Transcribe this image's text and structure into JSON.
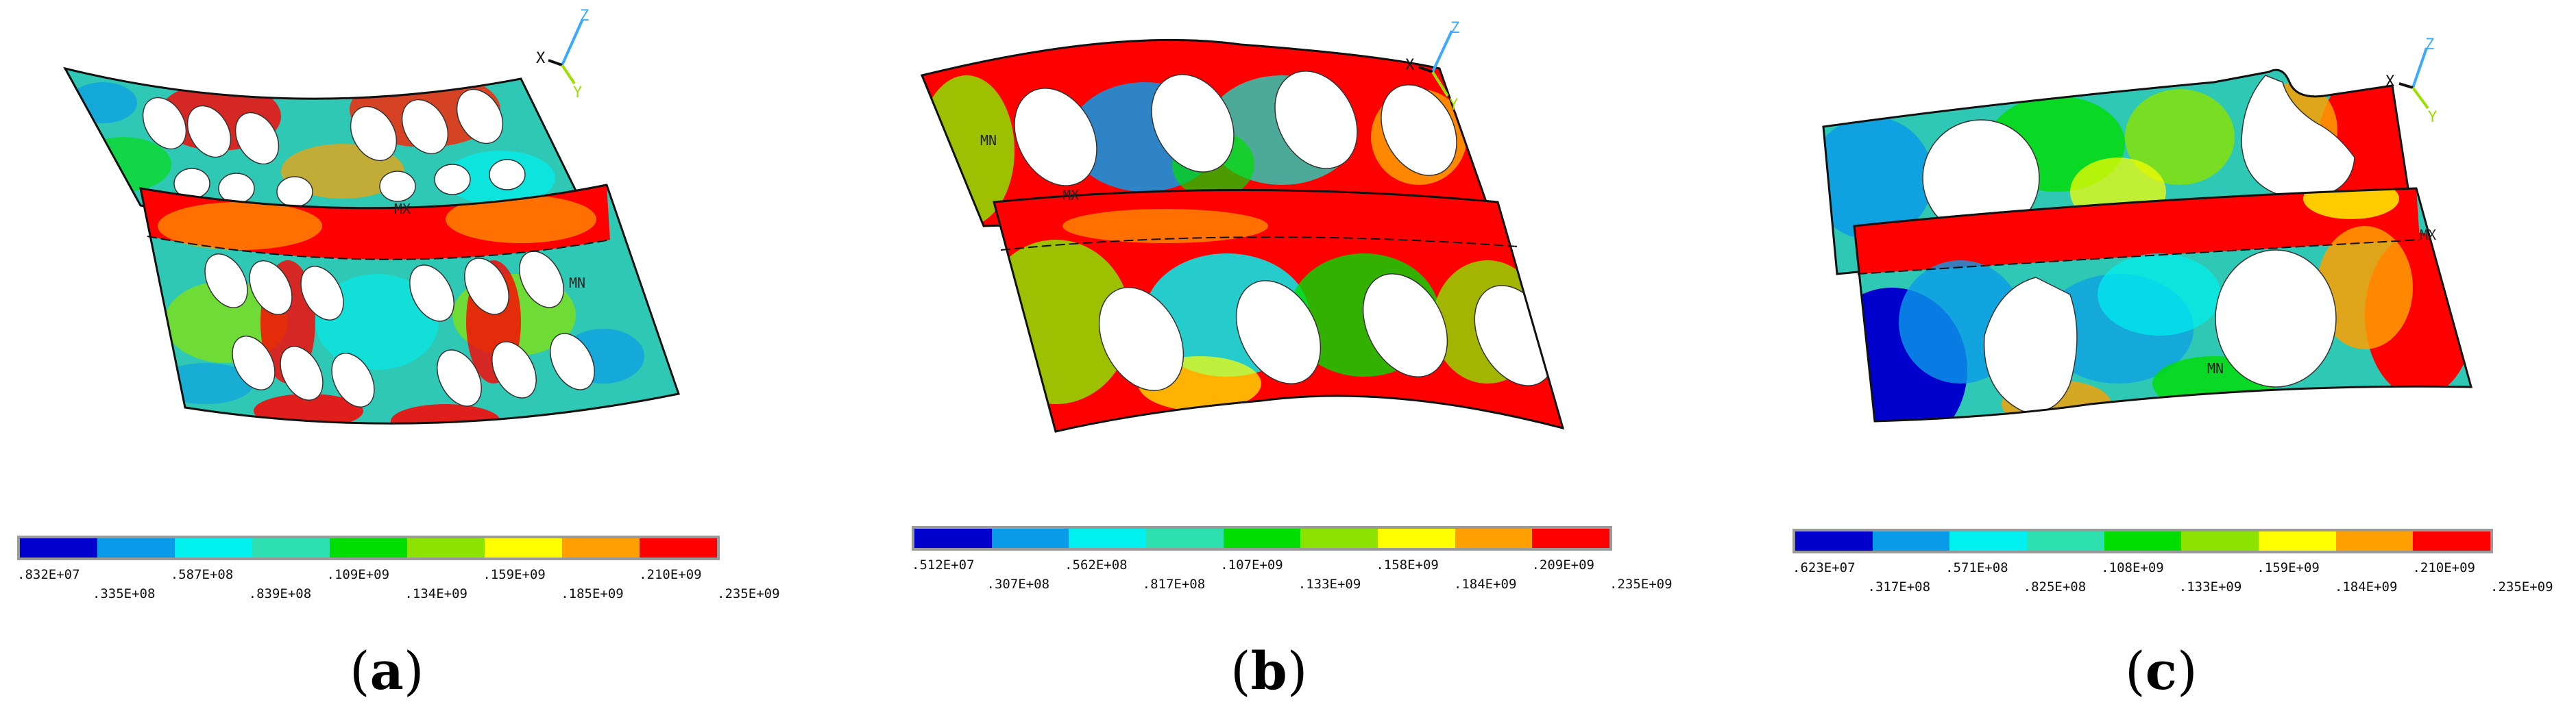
{
  "legend_colors": [
    "#0000cc",
    "#0a9be8",
    "#00f0f0",
    "#2ee0b0",
    "#00dd00",
    "#8ce200",
    "#ffff00",
    "#ffa000",
    "#ff0000"
  ],
  "panels": [
    {
      "id": "a",
      "caption_letter": "a",
      "triad": {
        "x": "X",
        "y": "Y",
        "z": "Z"
      },
      "markers": {
        "max": "MX",
        "min": "MN"
      },
      "legend_ticks": [
        ".832E+07",
        ".335E+08",
        ".587E+08",
        ".839E+08",
        ".109E+09",
        ".134E+09",
        ".159E+09",
        ".185E+09",
        ".210E+09",
        ".235E+09"
      ]
    },
    {
      "id": "b",
      "caption_letter": "b",
      "triad": {
        "x": "X",
        "y": "Y",
        "z": "Z"
      },
      "markers": {
        "max": "MX",
        "min": "MN"
      },
      "legend_ticks": [
        ".512E+07",
        ".307E+08",
        ".562E+08",
        ".817E+08",
        ".107E+09",
        ".133E+09",
        ".158E+09",
        ".184E+09",
        ".209E+09",
        ".235E+09"
      ]
    },
    {
      "id": "c",
      "caption_letter": "c",
      "triad": {
        "x": "X",
        "y": "Y",
        "z": "Z"
      },
      "markers": {
        "max": "MX",
        "min": "MN"
      },
      "legend_ticks": [
        ".623E+07",
        ".317E+08",
        ".571E+08",
        ".825E+08",
        ".108E+09",
        ".133E+09",
        ".159E+09",
        ".184E+09",
        ".210E+09",
        ".235E+09"
      ]
    }
  ]
}
